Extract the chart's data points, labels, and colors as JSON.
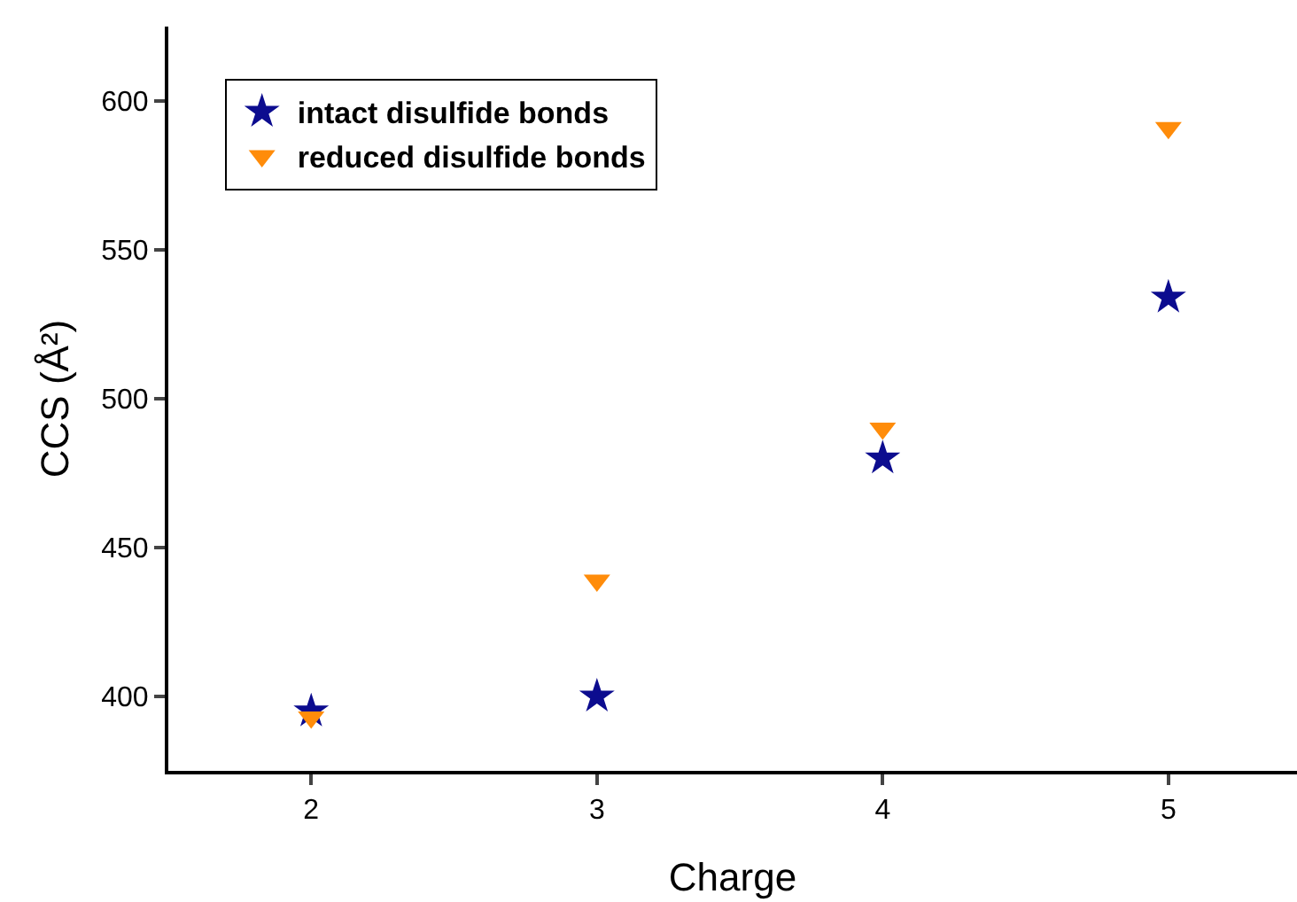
{
  "chart_data": {
    "type": "scatter",
    "xlabel": "Charge",
    "ylabel": "CCS (Å²)",
    "x": [
      2,
      3,
      4,
      5
    ],
    "series": [
      {
        "name": "intact disulfide bonds",
        "color": "#0c0c8f",
        "marker": "star",
        "values": [
          395,
          400,
          480,
          534
        ]
      },
      {
        "name": "reduced disulfide bonds",
        "color": "#ff8c0a",
        "marker": "triangle",
        "values": [
          393,
          439,
          490,
          591
        ]
      }
    ],
    "xlim": [
      1.5,
      5.45
    ],
    "xticks": [
      2,
      3,
      4,
      5
    ],
    "ylim": [
      375,
      625
    ],
    "yticks": [
      400,
      450,
      500,
      550,
      600
    ],
    "grid": false,
    "legend": "top left"
  }
}
